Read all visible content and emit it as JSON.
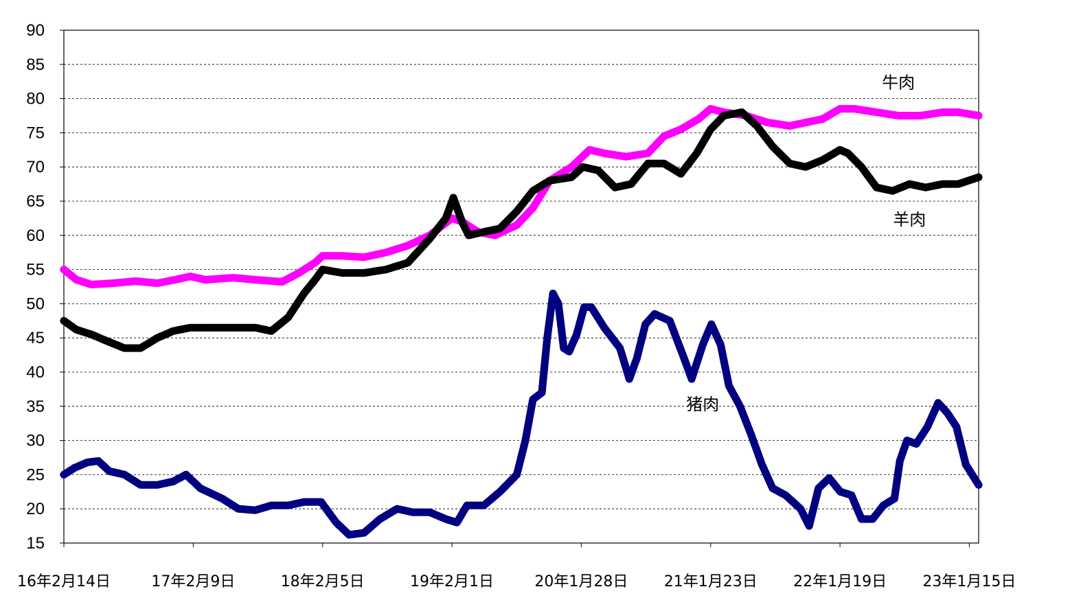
{
  "chart_data": {
    "type": "scatter",
    "title": "",
    "xlabel": "",
    "ylabel": "",
    "ylim": [
      15,
      90
    ],
    "yticks": [
      15,
      20,
      25,
      30,
      35,
      40,
      45,
      50,
      55,
      60,
      65,
      70,
      75,
      80,
      85,
      90
    ],
    "xlim": [
      "2016-02-14",
      "2023-02-10"
    ],
    "xticks": [
      {
        "date": "2016-02-14",
        "label": "16年2月14日"
      },
      {
        "date": "2017-02-09",
        "label": "17年2月9日"
      },
      {
        "date": "2018-02-05",
        "label": "18年2月5日"
      },
      {
        "date": "2019-02-01",
        "label": "19年2月1日"
      },
      {
        "date": "2020-01-28",
        "label": "20年1月28日"
      },
      {
        "date": "2021-01-23",
        "label": "21年1月23日"
      },
      {
        "date": "2022-01-19",
        "label": "22年1月19日"
      },
      {
        "date": "2023-01-15",
        "label": "23年1月15日"
      }
    ],
    "grid": "horizontal dashed",
    "legend": "none",
    "series": [
      {
        "name": "牛肉",
        "color": "#FF00FF",
        "points": [
          [
            "2016-02-14",
            55
          ],
          [
            "2016-03-20",
            53.5
          ],
          [
            "2016-05-01",
            52.8
          ],
          [
            "2016-07-01",
            53
          ],
          [
            "2016-09-01",
            53.3
          ],
          [
            "2016-11-01",
            53
          ],
          [
            "2016-12-20",
            53.5
          ],
          [
            "2017-02-01",
            54
          ],
          [
            "2017-03-15",
            53.5
          ],
          [
            "2017-06-01",
            53.8
          ],
          [
            "2017-08-01",
            53.5
          ],
          [
            "2017-10-15",
            53.2
          ],
          [
            "2017-12-01",
            54.5
          ],
          [
            "2018-01-15",
            56
          ],
          [
            "2018-02-05",
            57
          ],
          [
            "2018-04-01",
            57
          ],
          [
            "2018-06-01",
            56.8
          ],
          [
            "2018-08-01",
            57.5
          ],
          [
            "2018-10-01",
            58.5
          ],
          [
            "2018-12-01",
            60
          ],
          [
            "2019-02-01",
            62.5
          ],
          [
            "2019-03-01",
            62
          ],
          [
            "2019-04-15",
            60.5
          ],
          [
            "2019-06-01",
            60
          ],
          [
            "2019-08-01",
            61.5
          ],
          [
            "2019-09-15",
            64
          ],
          [
            "2019-11-01",
            68
          ],
          [
            "2020-01-01",
            70
          ],
          [
            "2020-02-20",
            72.5
          ],
          [
            "2020-04-01",
            72
          ],
          [
            "2020-06-01",
            71.5
          ],
          [
            "2020-08-01",
            72
          ],
          [
            "2020-09-15",
            74.5
          ],
          [
            "2020-11-01",
            75.5
          ],
          [
            "2020-12-20",
            77
          ],
          [
            "2021-01-23",
            78.5
          ],
          [
            "2021-03-01",
            78
          ],
          [
            "2021-05-01",
            77.5
          ],
          [
            "2021-07-01",
            76.5
          ],
          [
            "2021-09-01",
            76
          ],
          [
            "2021-10-15",
            76.5
          ],
          [
            "2021-12-01",
            77
          ],
          [
            "2022-01-19",
            78.5
          ],
          [
            "2022-03-01",
            78.5
          ],
          [
            "2022-05-01",
            78
          ],
          [
            "2022-07-01",
            77.5
          ],
          [
            "2022-09-01",
            77.5
          ],
          [
            "2022-11-01",
            78
          ],
          [
            "2022-12-15",
            78
          ],
          [
            "2023-02-10",
            77.5
          ]
        ]
      },
      {
        "name": "羊肉",
        "color": "#000000",
        "points": [
          [
            "2016-02-14",
            47.5
          ],
          [
            "2016-03-20",
            46.2
          ],
          [
            "2016-05-01",
            45.5
          ],
          [
            "2016-06-15",
            44.5
          ],
          [
            "2016-08-01",
            43.5
          ],
          [
            "2016-09-15",
            43.5
          ],
          [
            "2016-11-01",
            45
          ],
          [
            "2016-12-15",
            46
          ],
          [
            "2017-02-01",
            46.5
          ],
          [
            "2017-04-01",
            46.5
          ],
          [
            "2017-06-01",
            46.5
          ],
          [
            "2017-08-01",
            46.5
          ],
          [
            "2017-09-15",
            46
          ],
          [
            "2017-11-01",
            48
          ],
          [
            "2017-12-15",
            51.5
          ],
          [
            "2018-01-15",
            53.5
          ],
          [
            "2018-02-05",
            55
          ],
          [
            "2018-04-01",
            54.5
          ],
          [
            "2018-06-01",
            54.5
          ],
          [
            "2018-08-01",
            55
          ],
          [
            "2018-10-01",
            56
          ],
          [
            "2018-12-01",
            59.5
          ],
          [
            "2019-01-15",
            62.5
          ],
          [
            "2019-02-05",
            65.5
          ],
          [
            "2019-03-01",
            62
          ],
          [
            "2019-03-20",
            60
          ],
          [
            "2019-05-01",
            60.5
          ],
          [
            "2019-06-15",
            61
          ],
          [
            "2019-08-01",
            63.5
          ],
          [
            "2019-09-15",
            66.5
          ],
          [
            "2019-11-01",
            68
          ],
          [
            "2020-01-01",
            68.5
          ],
          [
            "2020-02-01",
            70
          ],
          [
            "2020-03-15",
            69.5
          ],
          [
            "2020-05-01",
            67
          ],
          [
            "2020-06-15",
            67.5
          ],
          [
            "2020-08-01",
            70.5
          ],
          [
            "2020-09-15",
            70.5
          ],
          [
            "2020-11-01",
            69
          ],
          [
            "2020-12-15",
            72
          ],
          [
            "2021-01-23",
            75.5
          ],
          [
            "2021-03-01",
            77.5
          ],
          [
            "2021-04-20",
            78
          ],
          [
            "2021-06-01",
            76
          ],
          [
            "2021-07-15",
            73
          ],
          [
            "2021-09-01",
            70.5
          ],
          [
            "2021-10-15",
            70
          ],
          [
            "2021-12-01",
            71
          ],
          [
            "2022-01-19",
            72.5
          ],
          [
            "2022-02-10",
            72
          ],
          [
            "2022-03-20",
            70
          ],
          [
            "2022-05-01",
            67
          ],
          [
            "2022-06-15",
            66.5
          ],
          [
            "2022-08-01",
            67.5
          ],
          [
            "2022-09-15",
            67
          ],
          [
            "2022-11-01",
            67.5
          ],
          [
            "2022-12-15",
            67.5
          ],
          [
            "2023-02-10",
            68.5
          ]
        ]
      },
      {
        "name": "猪肉",
        "color": "#000080",
        "points": [
          [
            "2016-02-14",
            25
          ],
          [
            "2016-03-15",
            26
          ],
          [
            "2016-04-20",
            26.8
          ],
          [
            "2016-05-20",
            27
          ],
          [
            "2016-06-20",
            25.5
          ],
          [
            "2016-08-01",
            25
          ],
          [
            "2016-09-15",
            23.5
          ],
          [
            "2016-11-01",
            23.5
          ],
          [
            "2016-12-15",
            24
          ],
          [
            "2017-01-20",
            25
          ],
          [
            "2017-03-01",
            23
          ],
          [
            "2017-05-01",
            21.5
          ],
          [
            "2017-06-15",
            20
          ],
          [
            "2017-08-01",
            19.8
          ],
          [
            "2017-09-15",
            20.5
          ],
          [
            "2017-11-01",
            20.5
          ],
          [
            "2017-12-15",
            21
          ],
          [
            "2018-02-01",
            21
          ],
          [
            "2018-03-15",
            18
          ],
          [
            "2018-04-20",
            16.2
          ],
          [
            "2018-06-01",
            16.5
          ],
          [
            "2018-07-15",
            18.5
          ],
          [
            "2018-09-01",
            20
          ],
          [
            "2018-10-15",
            19.5
          ],
          [
            "2018-12-01",
            19.5
          ],
          [
            "2019-01-15",
            18.5
          ],
          [
            "2019-02-15",
            18
          ],
          [
            "2019-03-15",
            20.5
          ],
          [
            "2019-05-01",
            20.5
          ],
          [
            "2019-06-15",
            22.5
          ],
          [
            "2019-08-01",
            25
          ],
          [
            "2019-08-25",
            30
          ],
          [
            "2019-09-15",
            36
          ],
          [
            "2019-10-10",
            37
          ],
          [
            "2019-10-25",
            45
          ],
          [
            "2019-11-10",
            51.5
          ],
          [
            "2019-11-25",
            50
          ],
          [
            "2019-12-10",
            43.5
          ],
          [
            "2019-12-25",
            43
          ],
          [
            "2020-01-15",
            45.5
          ],
          [
            "2020-02-05",
            49.5
          ],
          [
            "2020-02-25",
            49.5
          ],
          [
            "2020-04-01",
            46.5
          ],
          [
            "2020-05-15",
            43.5
          ],
          [
            "2020-06-10",
            39
          ],
          [
            "2020-07-01",
            42
          ],
          [
            "2020-07-25",
            47
          ],
          [
            "2020-08-20",
            48.5
          ],
          [
            "2020-10-01",
            47.5
          ],
          [
            "2020-11-10",
            42
          ],
          [
            "2020-12-01",
            39
          ],
          [
            "2021-01-01",
            44
          ],
          [
            "2021-01-25",
            47
          ],
          [
            "2021-02-20",
            44
          ],
          [
            "2021-03-15",
            38
          ],
          [
            "2021-04-15",
            35
          ],
          [
            "2021-05-15",
            31
          ],
          [
            "2021-06-15",
            26.5
          ],
          [
            "2021-07-15",
            23
          ],
          [
            "2021-08-20",
            22
          ],
          [
            "2021-10-01",
            20
          ],
          [
            "2021-10-25",
            17.5
          ],
          [
            "2021-11-20",
            23
          ],
          [
            "2021-12-20",
            24.5
          ],
          [
            "2022-01-20",
            22.5
          ],
          [
            "2022-02-20",
            22
          ],
          [
            "2022-03-20",
            18.5
          ],
          [
            "2022-04-20",
            18.5
          ],
          [
            "2022-05-20",
            20.5
          ],
          [
            "2022-06-20",
            21.5
          ],
          [
            "2022-07-05",
            27
          ],
          [
            "2022-07-25",
            30
          ],
          [
            "2022-08-20",
            29.5
          ],
          [
            "2022-09-20",
            32
          ],
          [
            "2022-10-20",
            35.5
          ],
          [
            "2022-11-15",
            34
          ],
          [
            "2022-12-10",
            32
          ],
          [
            "2023-01-05",
            26.5
          ],
          [
            "2023-02-10",
            23.5
          ]
        ]
      }
    ],
    "annotations": [
      {
        "text": "牛肉",
        "series": "牛肉",
        "x": "2022-07-01",
        "y": 81.5
      },
      {
        "text": "羊肉",
        "series": "羊肉",
        "x": "2022-08-01",
        "y": 61.5
      },
      {
        "text": "猪肉",
        "series": "猪肉",
        "x": "2021-01-01",
        "y": 34.5
      }
    ]
  }
}
